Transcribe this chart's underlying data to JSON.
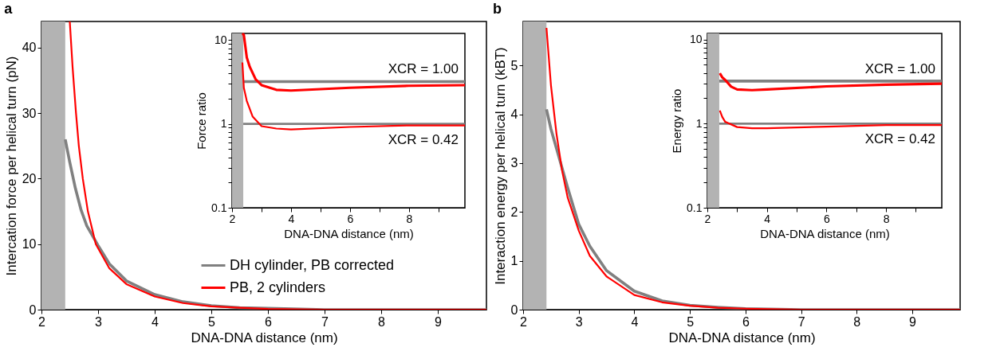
{
  "chart_data": [
    {
      "type": "line",
      "title": "a",
      "xlabel": "DNA-DNA distance (nm)",
      "ylabel": "Intercation force per helical turn (pN)",
      "xlim": [
        2,
        9.86
      ],
      "ylim": [
        0,
        44
      ],
      "xticks": [
        2,
        3,
        4,
        5,
        6,
        7,
        8,
        9
      ],
      "yticks": [
        0,
        10,
        20,
        30,
        40
      ],
      "legend": "bottom right",
      "bands": [
        {
          "axis": "x",
          "from": 2,
          "to": 2.42,
          "color": "#b3b3b3"
        }
      ],
      "series": [
        {
          "name": "DH cylinder, PB corrected",
          "color": "#808080",
          "x": [
            2.42,
            2.5,
            2.6,
            2.7,
            2.8,
            3,
            3.2,
            3.5,
            4,
            4.5,
            5,
            5.5,
            6,
            7,
            8,
            9.86
          ],
          "values": [
            26,
            22.5,
            18.5,
            15.2,
            12.8,
            9.8,
            7.0,
            4.4,
            2.3,
            1.2,
            0.6,
            0.3,
            0.2,
            0,
            0,
            0
          ]
        },
        {
          "name": "PB, 2 cylinders",
          "color": "#ff0000",
          "x": [
            2.5,
            2.55,
            2.61,
            2.66,
            2.73,
            2.82,
            2.96,
            3.2,
            3.5,
            4,
            4.5,
            5,
            5.5,
            6,
            7,
            8,
            9.86
          ],
          "values": [
            44,
            37,
            30,
            25,
            20,
            15,
            10,
            6.3,
            3.9,
            2.0,
            1.0,
            0.5,
            0.3,
            0.1,
            0,
            0,
            0
          ]
        }
      ]
    },
    {
      "type": "line",
      "xlabel": "DNA-DNA distance (nm)",
      "ylabel": "Force ratio",
      "log": "y",
      "xlim": [
        2,
        9.9
      ],
      "ylim": [
        0.1,
        12
      ],
      "xticks": [
        2,
        {
          "value": 3,
          "label": null
        },
        4,
        {
          "value": 5,
          "label": null
        },
        6,
        {
          "value": 7,
          "label": null
        },
        8,
        {
          "value": 9,
          "label": null
        }
      ],
      "yticks": [
        0.1,
        {
          "value": 0.2,
          "label": null
        },
        {
          "value": 0.3,
          "label": null
        },
        {
          "value": 0.4,
          "label": null
        },
        {
          "value": 0.5,
          "label": null
        },
        {
          "value": 0.6,
          "label": null
        },
        {
          "value": 0.7,
          "label": null
        },
        {
          "value": 0.8,
          "label": null
        },
        {
          "value": 0.9,
          "label": null
        },
        1,
        {
          "value": 2,
          "label": null
        },
        {
          "value": 3,
          "label": null
        },
        {
          "value": 4,
          "label": null
        },
        {
          "value": 5,
          "label": null
        },
        {
          "value": 6,
          "label": null
        },
        {
          "value": 7,
          "label": null
        },
        {
          "value": 8,
          "label": null
        },
        {
          "value": 9,
          "label": null
        },
        10
      ],
      "bands": [
        {
          "axis": "x",
          "from": 2,
          "to": 2.38,
          "color": "#b3b3b3"
        }
      ],
      "annotations": [
        "XCR = 1.00",
        "XCR = 0.42"
      ],
      "series": [
        {
          "color": "#808080",
          "x": [
            2.38,
            9.9
          ],
          "values": [
            3.2,
            3.2
          ]
        },
        {
          "color": "#ff0000",
          "x": [
            2.35,
            2.4,
            2.5,
            2.6,
            2.8,
            3,
            3.5,
            4,
            5,
            6,
            8,
            9.9
          ],
          "values": [
            12,
            11.5,
            6.2,
            4.8,
            3.4,
            2.9,
            2.55,
            2.5,
            2.6,
            2.7,
            2.85,
            2.9
          ]
        },
        {
          "color": "#808080",
          "x": [
            2.38,
            9.9
          ],
          "values": [
            1,
            1
          ]
        },
        {
          "color": "#ff0000",
          "x": [
            2.35,
            2.4,
            2.5,
            2.7,
            3,
            3.5,
            4,
            6,
            8,
            9.9
          ],
          "values": [
            5.4,
            2.7,
            1.88,
            1.22,
            0.94,
            0.88,
            0.86,
            0.92,
            0.96,
            0.96
          ]
        }
      ]
    },
    {
      "type": "line",
      "title": "b",
      "xlabel": "DNA-DNA distance (nm)",
      "ylabel": "Interaction energy per helical turn (kBT)",
      "xlim": [
        2,
        9.86
      ],
      "ylim": [
        0,
        5.9
      ],
      "xticks": [
        2,
        3,
        4,
        5,
        6,
        7,
        8,
        9
      ],
      "yticks": [
        0,
        1,
        2,
        3,
        4,
        5
      ],
      "bands": [
        {
          "axis": "x",
          "from": 2,
          "to": 2.42,
          "color": "#b3b3b3"
        }
      ],
      "series": [
        {
          "color": "#808080",
          "x": [
            2.42,
            2.5,
            2.6,
            2.7,
            2.8,
            3,
            3.2,
            3.5,
            4,
            4.5,
            5,
            5.5,
            6,
            7,
            8,
            9.86
          ],
          "values": [
            4.1,
            3.7,
            3.3,
            2.9,
            2.5,
            1.75,
            1.3,
            0.8,
            0.38,
            0.18,
            0.09,
            0.05,
            0.02,
            0,
            0,
            0
          ]
        },
        {
          "color": "#ff0000",
          "x": [
            2.42,
            2.5,
            2.6,
            2.7,
            2.8,
            3,
            3.2,
            3.5,
            4,
            4.5,
            5,
            5.5,
            6,
            7,
            8,
            9.86
          ],
          "values": [
            5.77,
            4.6,
            3.6,
            2.85,
            2.3,
            1.62,
            1.1,
            0.68,
            0.3,
            0.15,
            0.08,
            0.04,
            0.02,
            0,
            0,
            0
          ]
        }
      ]
    },
    {
      "type": "line",
      "xlabel": "DNA-DNA distance (nm)",
      "ylabel": "Energy ratio",
      "log": "y",
      "xlim": [
        2,
        9.87
      ],
      "ylim": [
        0.1,
        11.8
      ],
      "xticks": [
        2,
        {
          "value": 3,
          "label": null
        },
        4,
        {
          "value": 5,
          "label": null
        },
        6,
        {
          "value": 7,
          "label": null
        },
        8,
        {
          "value": 9,
          "label": null
        }
      ],
      "yticks": [
        0.1,
        {
          "value": 0.2,
          "label": null
        },
        {
          "value": 0.3,
          "label": null
        },
        {
          "value": 0.4,
          "label": null
        },
        {
          "value": 0.5,
          "label": null
        },
        {
          "value": 0.6,
          "label": null
        },
        {
          "value": 0.7,
          "label": null
        },
        {
          "value": 0.8,
          "label": null
        },
        {
          "value": 0.9,
          "label": null
        },
        1,
        {
          "value": 2,
          "label": null
        },
        {
          "value": 3,
          "label": null
        },
        {
          "value": 4,
          "label": null
        },
        {
          "value": 5,
          "label": null
        },
        {
          "value": 6,
          "label": null
        },
        {
          "value": 7,
          "label": null
        },
        {
          "value": 8,
          "label": null
        },
        {
          "value": 9,
          "label": null
        },
        10
      ],
      "bands": [
        {
          "axis": "x",
          "from": 2,
          "to": 2.4,
          "color": "#b3b3b3"
        }
      ],
      "annotations": [
        "XCR = 1.00",
        "XCR = 0.42"
      ],
      "series": [
        {
          "color": "#808080",
          "x": [
            2.4,
            9.87
          ],
          "values": [
            3.2,
            3.2
          ]
        },
        {
          "color": "#ff0000",
          "x": [
            2.42,
            2.5,
            2.6,
            2.8,
            3,
            3.5,
            4,
            6,
            8,
            9.87
          ],
          "values": [
            3.97,
            3.55,
            3.3,
            2.75,
            2.55,
            2.5,
            2.55,
            2.77,
            2.9,
            2.98
          ]
        },
        {
          "color": "#808080",
          "x": [
            2.4,
            9.87
          ],
          "values": [
            1,
            1
          ]
        },
        {
          "color": "#ff0000",
          "x": [
            2.42,
            2.5,
            2.6,
            3,
            3.5,
            4,
            6,
            8,
            9.87
          ],
          "values": [
            1.43,
            1.2,
            1.05,
            0.91,
            0.88,
            0.88,
            0.92,
            0.96,
            0.96
          ]
        }
      ]
    }
  ]
}
